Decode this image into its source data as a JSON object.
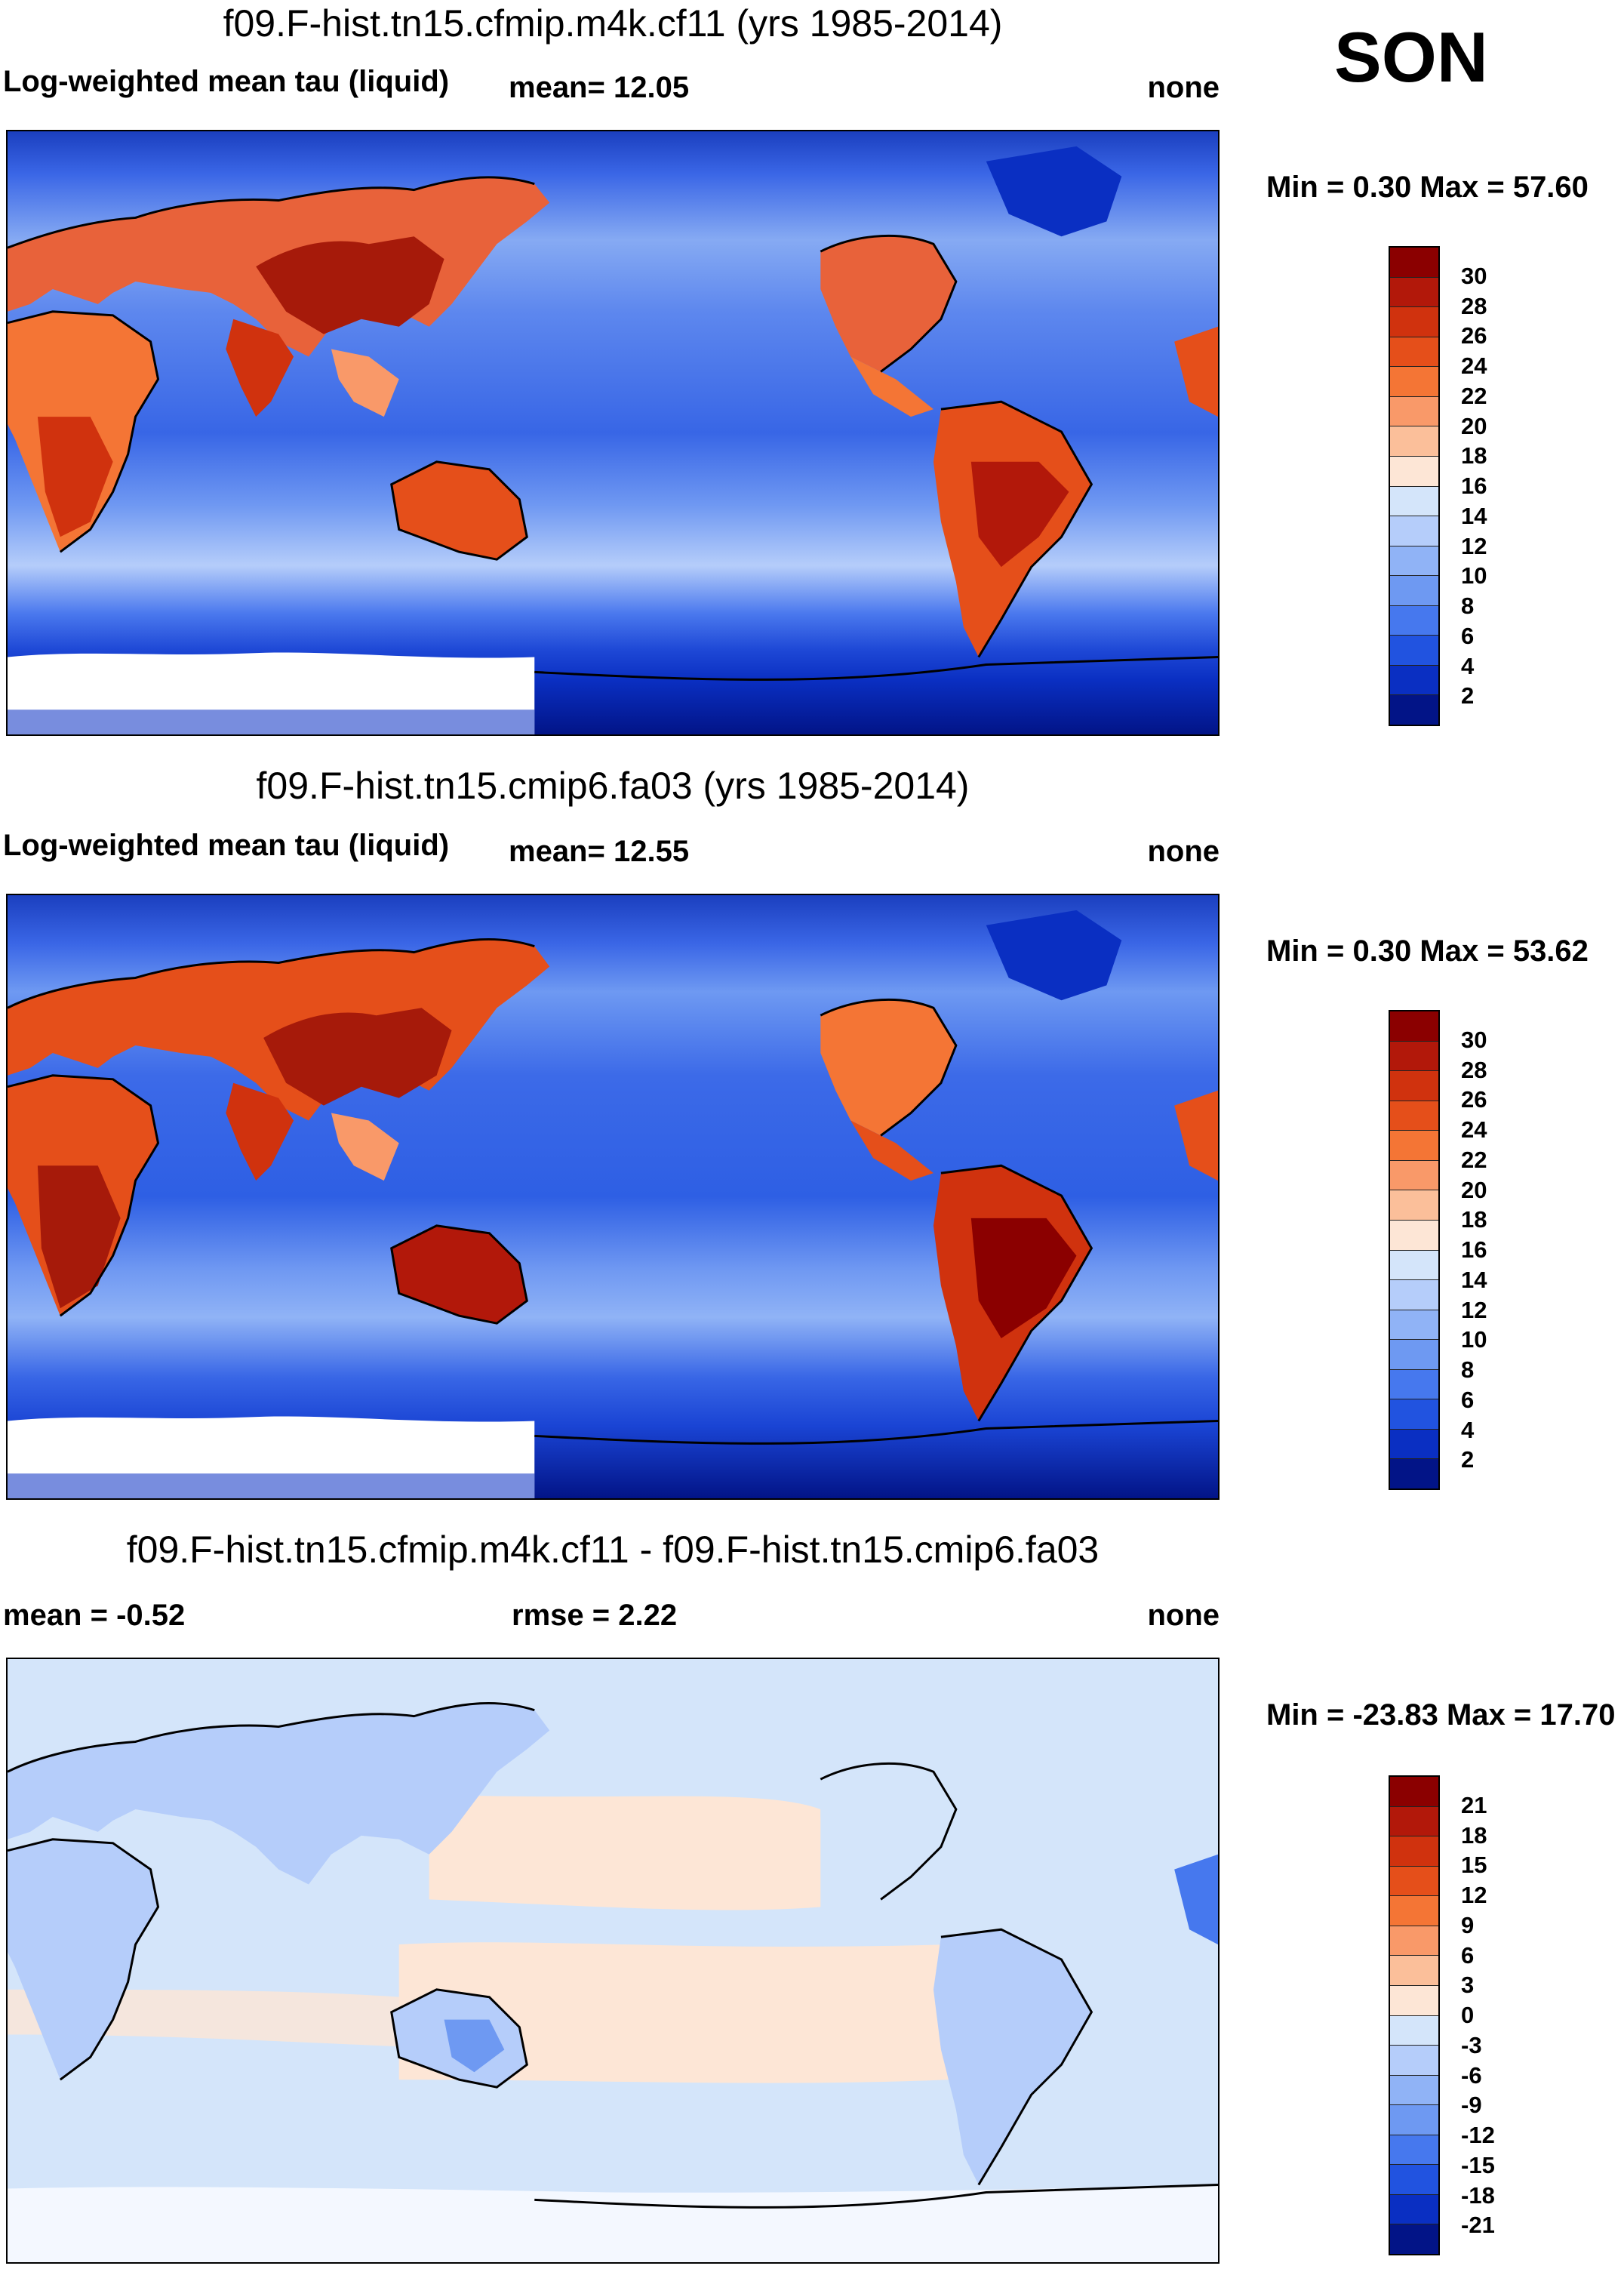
{
  "season": "SON",
  "panels": [
    {
      "title": "f09.F-hist.tn15.cfmip.m4k.cf11 (yrs 1985-2014)",
      "variable": "Log-weighted mean tau (liquid)",
      "stat1": "mean=  12.05",
      "stat2": "",
      "units": "none",
      "minmax": "Min =   0.30 Max =  57.60",
      "type": "abs",
      "mean": 12.05,
      "min": 0.3,
      "max": 57.6,
      "colorbar": {
        "levels": [
          "30",
          "28",
          "26",
          "24",
          "22",
          "20",
          "18",
          "16",
          "14",
          "12",
          "10",
          "8",
          "6",
          "4",
          "2"
        ],
        "colors": [
          "#8b0000",
          "#b2180a",
          "#d0320e",
          "#e54f1a",
          "#f47535",
          "#f99969",
          "#fbbf9a",
          "#fde6d6",
          "#d4e5fa",
          "#b5cdfa",
          "#90b3f6",
          "#6e99f2",
          "#4678ee",
          "#2153e0",
          "#0a2fc2",
          "#021487"
        ]
      }
    },
    {
      "title": "f09.F-hist.tn15.cmip6.fa03 (yrs 1985-2014)",
      "variable": "Log-weighted mean tau (liquid)",
      "stat1": "mean=  12.55",
      "stat2": "",
      "units": "none",
      "minmax": "Min =   0.30 Max =  53.62",
      "type": "abs",
      "mean": 12.55,
      "min": 0.3,
      "max": 53.62,
      "colorbar": {
        "levels": [
          "30",
          "28",
          "26",
          "24",
          "22",
          "20",
          "18",
          "16",
          "14",
          "12",
          "10",
          "8",
          "6",
          "4",
          "2"
        ],
        "colors": [
          "#8b0000",
          "#b2180a",
          "#d0320e",
          "#e54f1a",
          "#f47535",
          "#f99969",
          "#fbbf9a",
          "#fde6d6",
          "#d4e5fa",
          "#b5cdfa",
          "#90b3f6",
          "#6e99f2",
          "#4678ee",
          "#2153e0",
          "#0a2fc2",
          "#021487"
        ]
      }
    },
    {
      "title": "f09.F-hist.tn15.cfmip.m4k.cf11 - f09.F-hist.tn15.cmip6.fa03",
      "variable": "",
      "stat1": "mean =  -0.52",
      "stat2": "rmse =    2.22",
      "units": "none",
      "minmax": "Min = -23.83 Max =  17.70",
      "type": "diff",
      "mean": -0.52,
      "rmse": 2.22,
      "min": -23.83,
      "max": 17.7,
      "colorbar": {
        "levels": [
          "21",
          "18",
          "15",
          "12",
          "9",
          "6",
          "3",
          "0",
          "-3",
          "-6",
          "-9",
          "-12",
          "-15",
          "-18",
          "-21"
        ],
        "colors": [
          "#8b0000",
          "#b2180a",
          "#d0320e",
          "#e54f1a",
          "#f47535",
          "#f99969",
          "#fbbf9a",
          "#fde6d6",
          "#d4e5fa",
          "#b5cdfa",
          "#90b3f6",
          "#6e99f2",
          "#4678ee",
          "#2153e0",
          "#0a2fc2",
          "#021487"
        ]
      }
    }
  ]
}
